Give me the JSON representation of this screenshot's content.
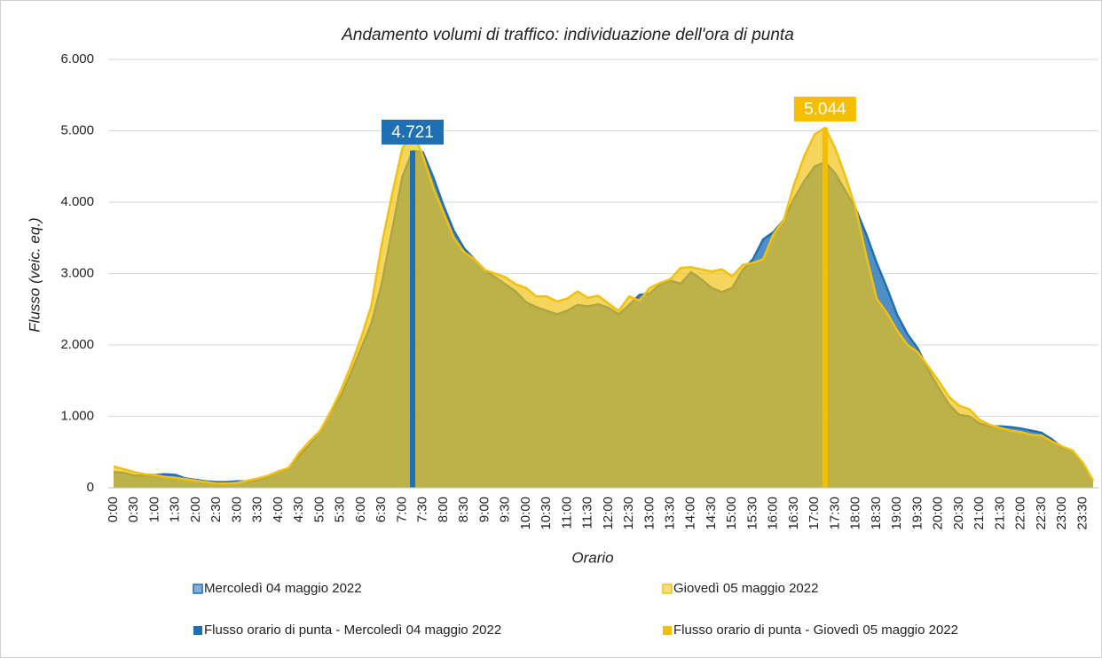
{
  "chart_data": {
    "type": "area",
    "title": "Andamento volumi di traffico: individuazione dell'ora di punta",
    "y_label": "Flusso (veic. eq.)",
    "x_label": "Orario",
    "categories": [
      "0:00",
      null,
      "0:30",
      null,
      "1:00",
      null,
      "1:30",
      null,
      "2:00",
      null,
      "2:30",
      null,
      "3:00",
      null,
      "3:30",
      null,
      "4:00",
      null,
      "4:30",
      null,
      "5:00",
      null,
      "5:30",
      null,
      "6:00",
      null,
      "6:30",
      null,
      "7:00",
      null,
      "7:30",
      null,
      "8:00",
      null,
      "8:30",
      null,
      "9:00",
      null,
      "9:30",
      null,
      "10:00",
      null,
      "10:30",
      null,
      "11:00",
      null,
      "11:30",
      null,
      "12:00",
      null,
      "12:30",
      null,
      "13:00",
      null,
      "13:30",
      null,
      "14:00",
      null,
      "14:30",
      null,
      "15:00",
      null,
      "15:30",
      null,
      "16:00",
      null,
      "16:30",
      null,
      "17:00",
      null,
      "17:30",
      null,
      "18:00",
      null,
      "18:30",
      null,
      "19:00",
      null,
      "19:30",
      null,
      "20:00",
      null,
      "20:30",
      null,
      "21:00",
      null,
      "21:30",
      null,
      "22:00",
      null,
      "22:30",
      null,
      "23:00",
      null,
      "23:30",
      null
    ],
    "ylim": [
      0,
      6000
    ],
    "yticks": [
      0,
      {
        "value": 1000,
        "label": "1.000"
      },
      {
        "value": 2000,
        "label": "2.000"
      },
      {
        "value": 3000,
        "label": "3.000"
      },
      {
        "value": 4000,
        "label": "4.000"
      },
      {
        "value": 5000,
        "label": "5.000"
      },
      {
        "value": 6000,
        "label": "6.000"
      }
    ],
    "grid": true,
    "legend": "bottom",
    "series": [
      {
        "name": "Mercoledì 04 maggio 2022",
        "type": "area",
        "color": "#1f6fb5",
        "values": [
          220,
          210,
          170,
          170,
          180,
          190,
          180,
          130,
          110,
          90,
          80,
          80,
          90,
          90,
          110,
          150,
          230,
          270,
          450,
          600,
          780,
          1050,
          1270,
          1600,
          1950,
          2300,
          2850,
          3600,
          4350,
          4721,
          4700,
          4350,
          3950,
          3600,
          3350,
          3200,
          3050,
          2950,
          2850,
          2750,
          2600,
          2530,
          2480,
          2430,
          2480,
          2560,
          2540,
          2570,
          2520,
          2430,
          2560,
          2700,
          2720,
          2850,
          2900,
          2860,
          3020,
          2920,
          2800,
          2740,
          2800,
          3050,
          3200,
          3480,
          3580,
          3750,
          4050,
          4300,
          4500,
          4560,
          4400,
          4150,
          3900,
          3550,
          3150,
          2800,
          2420,
          2150,
          1950,
          1650,
          1400,
          1170,
          1020,
          1000,
          900,
          860,
          860,
          850,
          830,
          800,
          770,
          680,
          560,
          520,
          330,
          100
        ]
      },
      {
        "name": "Giovedì 05 maggio 2022",
        "type": "area",
        "color": "#f2c10f",
        "values": [
          300,
          260,
          220,
          190,
          180,
          150,
          140,
          120,
          100,
          80,
          60,
          60,
          70,
          100,
          130,
          170,
          230,
          280,
          490,
          650,
          790,
          1050,
          1350,
          1700,
          2100,
          2550,
          3400,
          4100,
          4750,
          5000,
          4650,
          4200,
          3850,
          3500,
          3300,
          3200,
          3050,
          3000,
          2950,
          2850,
          2800,
          2680,
          2680,
          2610,
          2650,
          2750,
          2660,
          2690,
          2580,
          2480,
          2680,
          2620,
          2800,
          2870,
          2920,
          3080,
          3090,
          3060,
          3030,
          3060,
          2960,
          3120,
          3150,
          3200,
          3550,
          3750,
          4250,
          4650,
          4950,
          5044,
          4750,
          4350,
          3900,
          3250,
          2650,
          2450,
          2200,
          2000,
          1900,
          1700,
          1500,
          1280,
          1150,
          1100,
          950,
          880,
          840,
          800,
          780,
          740,
          730,
          650,
          580,
          520,
          350,
          100
        ]
      },
      {
        "name": "Flusso orario di punta - Mercoledì 04 maggio 2022",
        "type": "bar",
        "color": "#1f6fb5",
        "values": [
          null,
          null,
          null,
          null,
          null,
          null,
          null,
          null,
          null,
          null,
          null,
          null,
          null,
          null,
          null,
          null,
          null,
          null,
          null,
          null,
          null,
          null,
          null,
          null,
          null,
          null,
          null,
          null,
          null,
          4721,
          null,
          null,
          null,
          null,
          null,
          null,
          null,
          null,
          null,
          null,
          null,
          null,
          null,
          null,
          null,
          null,
          null,
          null,
          null,
          null,
          null,
          null,
          null,
          null,
          null,
          null,
          null,
          null,
          null,
          null,
          null,
          null,
          null,
          null,
          null,
          null,
          null,
          null,
          null,
          null,
          null,
          null,
          null,
          null,
          null,
          null,
          null,
          null,
          null,
          null,
          null,
          null,
          null,
          null,
          null,
          null,
          null,
          null,
          null,
          null,
          null,
          null,
          null,
          null,
          null,
          null
        ],
        "value_labels": [
          null,
          null,
          null,
          null,
          null,
          null,
          null,
          null,
          null,
          null,
          null,
          null,
          null,
          null,
          null,
          null,
          null,
          null,
          null,
          null,
          null,
          null,
          null,
          null,
          null,
          null,
          null,
          null,
          null,
          "4.721",
          null,
          null,
          null,
          null,
          null,
          null,
          null,
          null,
          null,
          null,
          null,
          null,
          null,
          null,
          null,
          null,
          null,
          null,
          null,
          null,
          null,
          null,
          null,
          null,
          null,
          null,
          null,
          null,
          null,
          null,
          null,
          null,
          null,
          null,
          null,
          null,
          null,
          null,
          null,
          null,
          null,
          null,
          null,
          null,
          null,
          null,
          null,
          null,
          null,
          null,
          null,
          null,
          null,
          null,
          null,
          null,
          null,
          null,
          null,
          null,
          null,
          null,
          null,
          null,
          null,
          null
        ]
      },
      {
        "name": "Flusso orario di punta - Giovedì 05 maggio 2022",
        "type": "bar",
        "color": "#f5bf00",
        "values": [
          null,
          null,
          null,
          null,
          null,
          null,
          null,
          null,
          null,
          null,
          null,
          null,
          null,
          null,
          null,
          null,
          null,
          null,
          null,
          null,
          null,
          null,
          null,
          null,
          null,
          null,
          null,
          null,
          null,
          null,
          null,
          null,
          null,
          null,
          null,
          null,
          null,
          null,
          null,
          null,
          null,
          null,
          null,
          null,
          null,
          null,
          null,
          null,
          null,
          null,
          null,
          null,
          null,
          null,
          null,
          null,
          null,
          null,
          null,
          null,
          null,
          null,
          null,
          null,
          null,
          null,
          null,
          null,
          null,
          5044,
          null,
          null,
          null,
          null,
          null,
          null,
          null,
          null,
          null,
          null,
          null,
          null,
          null,
          null,
          null,
          null,
          null,
          null,
          null,
          null,
          null,
          null,
          null,
          null,
          null,
          null
        ],
        "value_labels": [
          null,
          null,
          null,
          null,
          null,
          null,
          null,
          null,
          null,
          null,
          null,
          null,
          null,
          null,
          null,
          null,
          null,
          null,
          null,
          null,
          null,
          null,
          null,
          null,
          null,
          null,
          null,
          null,
          null,
          null,
          null,
          null,
          null,
          null,
          null,
          null,
          null,
          null,
          null,
          null,
          null,
          null,
          null,
          null,
          null,
          null,
          null,
          null,
          null,
          null,
          null,
          null,
          null,
          null,
          null,
          null,
          null,
          null,
          null,
          null,
          null,
          null,
          null,
          null,
          null,
          null,
          null,
          null,
          null,
          "5.044",
          null,
          null,
          null,
          null,
          null,
          null,
          null,
          null,
          null,
          null,
          null,
          null,
          null,
          null,
          null,
          null,
          null,
          null,
          null,
          null,
          null,
          null,
          null,
          null,
          null,
          null
        ]
      }
    ]
  }
}
